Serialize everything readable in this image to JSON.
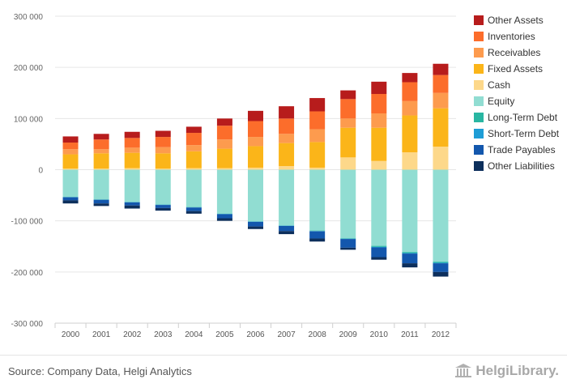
{
  "chart_data": {
    "type": "bar",
    "stacked": true,
    "categories": [
      "2000",
      "2001",
      "2002",
      "2003",
      "2004",
      "2005",
      "2006",
      "2007",
      "2008",
      "2009",
      "2010",
      "2011",
      "2012"
    ],
    "ylim": [
      -300000,
      300000
    ],
    "yticks": [
      300000,
      200000,
      100000,
      0,
      -100000,
      -200000,
      -300000
    ],
    "ytick_labels": [
      "300 000",
      "200 000",
      "100 000",
      "0",
      "-100 000",
      "-200 000",
      "-300 000"
    ],
    "grid": true,
    "legend_position": "right",
    "series": [
      {
        "name": "Cash",
        "color": "#fdd88a",
        "values": [
          2000,
          2000,
          3000,
          2000,
          3000,
          3000,
          4000,
          7000,
          4000,
          24000,
          17000,
          34000,
          45000
        ]
      },
      {
        "name": "Fixed Assets",
        "color": "#fbb519",
        "values": [
          28000,
          30000,
          30000,
          30000,
          33000,
          38000,
          42000,
          45000,
          50000,
          58000,
          65000,
          72000,
          75000
        ]
      },
      {
        "name": "Receivables",
        "color": "#fd9b4e",
        "values": [
          10000,
          8000,
          10000,
          12000,
          12000,
          18000,
          18000,
          18000,
          25000,
          18000,
          28000,
          28000,
          30000
        ]
      },
      {
        "name": "Inventories",
        "color": "#fc6d2b",
        "values": [
          13000,
          19000,
          19000,
          20000,
          24000,
          27000,
          31000,
          30000,
          35000,
          38000,
          38000,
          37000,
          35000
        ]
      },
      {
        "name": "Other Assets",
        "color": "#b71c1c",
        "values": [
          12000,
          11000,
          12000,
          12000,
          12000,
          14000,
          20000,
          24000,
          26000,
          17000,
          24000,
          18000,
          22000
        ]
      },
      {
        "name": "Equity",
        "color": "#91ddd2",
        "values": [
          -53000,
          -58000,
          -63000,
          -68000,
          -73000,
          -86000,
          -101000,
          -109000,
          -119000,
          -134000,
          -149000,
          -161000,
          -180000
        ]
      },
      {
        "name": "Long-Term Debt",
        "color": "#29b6a2",
        "values": [
          -500,
          -500,
          -500,
          -500,
          -500,
          -500,
          -500,
          -500,
          -1000,
          -1000,
          -2000,
          -2000,
          -2000
        ]
      },
      {
        "name": "Short-Term Debt",
        "color": "#1e9dd6",
        "values": [
          -500,
          -500,
          -500,
          -500,
          -500,
          -500,
          -500,
          -500,
          -500,
          -500,
          -1000,
          -1000,
          -1000
        ]
      },
      {
        "name": "Trade Payables",
        "color": "#1357ad",
        "values": [
          -6000,
          -7000,
          -6000,
          -6000,
          -7000,
          -8000,
          -9000,
          -10000,
          -14000,
          -17000,
          -19000,
          -19000,
          -17000
        ]
      },
      {
        "name": "Other Liabilities",
        "color": "#0d2f5c",
        "values": [
          -6000,
          -5000,
          -6000,
          -5000,
          -5000,
          -5000,
          -5000,
          -6000,
          -6000,
          -4000,
          -5000,
          -8000,
          -9000
        ]
      }
    ],
    "legend": [
      "Other Assets",
      "Inventories",
      "Receivables",
      "Fixed Assets",
      "Cash",
      "Equity",
      "Long-Term Debt",
      "Short-Term Debt",
      "Trade Payables",
      "Other Liabilities"
    ]
  },
  "footer": {
    "source": "Source: Company Data, Helgi Analytics",
    "brand": "HelgiLibrary.",
    "brand_icon": "building-columns-icon"
  }
}
